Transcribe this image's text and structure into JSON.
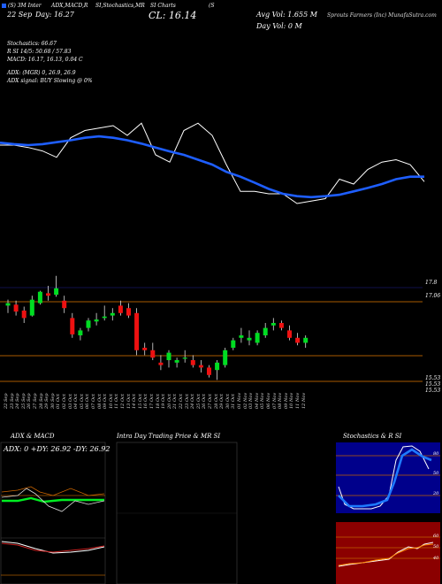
{
  "header": {
    "marker_color": "#1e5eff",
    "top_line": "(S) 3M Inter ADX,MACD,R SI,Stochastics,MR SI Charts (S)",
    "top_line_parts": [
      "(S) 3M Inter",
      "ADX,MACD,R",
      "SI,Stochastics,MR",
      "SI Charts",
      "(S"
    ],
    "date": "22 Sep",
    "day": "Day: 16.27",
    "close": "CL: 16.14",
    "avg_vol": "Avg Vol: 1.655 M",
    "day_vol": "Day Vol: 0 M",
    "company": "Sprouts Farmers (Inc) MunafaSutra.com"
  },
  "indicators": [
    "Stochastics: 66.67",
    "R SI 14/5: 50.68 / 57.83",
    "MACD: 16.17, 16.13, 0.04 C",
    "ADX: (MGR) 0, 26.9, 26.9",
    "ADX signal: BUY Slowing @ 0%"
  ],
  "price_labels": [
    "17.8",
    "17.06",
    "15.53",
    "15.53",
    "15.53"
  ],
  "x_labels": [
    "22 Sep",
    "23 Sep",
    "24 Sep",
    "25 Sep",
    "26 Sep",
    "27 Sep",
    "28 Sep",
    "29 Sep",
    "30 Sep",
    "01 Oct",
    "02 Oct",
    "03 Oct",
    "04 Oct",
    "05 Oct",
    "06 Oct",
    "07 Oct",
    "08 Oct",
    "09 Oct",
    "10 Oct",
    "11 Oct",
    "12 Oct",
    "13 Oct",
    "14 Oct",
    "15 Oct",
    "16 Oct",
    "17 Oct",
    "18 Oct",
    "19 Oct",
    "20 Oct",
    "21 Oct",
    "22 Oct",
    "23 Oct",
    "24 Oct",
    "25 Oct",
    "26 Oct",
    "27 Oct",
    "28 Oct",
    "29 Oct",
    "30 Oct",
    "31 Oct",
    "01 Nov",
    "02 Nov",
    "03 Nov",
    "04 Nov",
    "05 Nov",
    "06 Nov",
    "07 Nov",
    "08 Nov",
    "09 Nov",
    "10 Nov",
    "11 Nov",
    "12 Nov",
    "13 Nov",
    "14 Nov",
    "15 Nov",
    "16 Nov",
    "17 Nov",
    "18 Nov",
    "19 Nov",
    "20 Nov",
    "21 Nov",
    "22 Nov",
    "23 Nov",
    "24 Nov",
    "25 Nov",
    "26 Nov",
    "27 Nov",
    "28 Nov",
    "29 Nov",
    "30 Nov",
    "01 Dec",
    "02 Dec",
    "03 Dec",
    "04 Dec",
    "05 Dec",
    "06 Dec",
    "07 Dec",
    "08 Dec",
    "09 Dec"
  ],
  "panels": {
    "adx": {
      "title": "ADX & MACD",
      "readout": "ADX: 0 +DY: 26.92 -DY: 26.92"
    },
    "mrsi": {
      "title": "Intra Day Trading Price & MR SI"
    },
    "stoch": {
      "title": "Stochastics & R SI",
      "labels": [
        "80",
        "50",
        "20",
        "50",
        "60",
        "40"
      ]
    }
  },
  "colors": {
    "up": "#00dd22",
    "down": "#ee1111",
    "ema": "#1e5eff",
    "price_line": "#ffffff",
    "level_line": "#a85a00",
    "rsi_bg": "#8b0000",
    "stoch_bg": "#00008b"
  },
  "chart_data": [
    {
      "type": "line",
      "title": "Price & Moving Average",
      "series": [
        {
          "values": [
            16.9,
            16.9,
            16.85,
            16.78,
            16.65,
            17.05,
            17.2,
            17.25,
            17.3,
            17.1,
            17.35,
            16.7,
            16.55,
            17.2,
            17.35,
            17.1,
            16.5,
            15.95,
            15.95,
            15.9,
            15.9,
            15.7,
            15.75,
            15.8,
            16.2,
            16.1,
            16.4,
            16.55,
            16.6,
            16.5,
            16.15
          ]
        },
        {
          "values": [
            16.95,
            16.92,
            16.9,
            16.92,
            16.96,
            17.0,
            17.05,
            17.08,
            17.05,
            17.0,
            16.93,
            16.85,
            16.77,
            16.7,
            16.6,
            16.5,
            16.35,
            16.25,
            16.13,
            16.0,
            15.9,
            15.85,
            15.83,
            15.85,
            15.88,
            15.95,
            16.02,
            16.1,
            16.2,
            16.25,
            16.25
          ]
        }
      ]
    },
    {
      "type": "bar",
      "title": "Candlesticks",
      "categories": [
        "22 Sep",
        "29 Sep",
        "06 Oct",
        "13 Oct",
        "20 Oct",
        "27 Oct",
        "03 Nov",
        "10 Nov",
        "17 Nov",
        "24 Nov",
        "01 Dec",
        "09 Dec"
      ],
      "ohlc": [
        [
          17.2,
          17.32,
          17.05,
          17.25
        ],
        [
          17.22,
          17.3,
          17.0,
          17.08
        ],
        [
          17.1,
          17.18,
          16.85,
          16.95
        ],
        [
          17.0,
          17.4,
          16.98,
          17.32
        ],
        [
          17.25,
          17.5,
          17.22,
          17.48
        ],
        [
          17.45,
          17.6,
          17.3,
          17.4
        ],
        [
          17.42,
          17.8,
          17.38,
          17.55
        ],
        [
          17.3,
          17.4,
          17.05,
          17.15
        ],
        [
          16.95,
          17.05,
          16.55,
          16.62
        ],
        [
          16.6,
          16.75,
          16.5,
          16.7
        ],
        [
          16.75,
          16.95,
          16.68,
          16.9
        ],
        [
          16.88,
          17.05,
          16.8,
          16.92
        ],
        [
          16.95,
          17.2,
          16.9,
          16.98
        ],
        [
          17.0,
          17.15,
          16.9,
          17.05
        ],
        [
          17.2,
          17.3,
          17.0,
          17.05
        ],
        [
          17.15,
          17.25,
          16.95,
          17.0
        ],
        [
          17.05,
          17.15,
          16.2,
          16.3
        ],
        [
          16.35,
          16.45,
          16.2,
          16.3
        ],
        [
          16.3,
          16.45,
          16.1,
          16.15
        ],
        [
          16.05,
          16.2,
          15.9,
          16.0
        ],
        [
          16.1,
          16.3,
          15.95,
          16.25
        ],
        [
          16.05,
          16.15,
          15.95,
          16.1
        ],
        [
          16.15,
          16.3,
          16.05,
          16.15
        ],
        [
          16.1,
          16.2,
          15.95,
          16.0
        ],
        [
          16.0,
          16.1,
          15.85,
          15.95
        ],
        [
          15.95,
          16.0,
          15.75,
          15.8
        ],
        [
          15.9,
          16.1,
          15.7,
          16.05
        ],
        [
          16.0,
          16.35,
          15.95,
          16.3
        ],
        [
          16.35,
          16.55,
          16.3,
          16.5
        ],
        [
          16.55,
          16.75,
          16.45,
          16.6
        ],
        [
          16.5,
          16.7,
          16.4,
          16.55
        ],
        [
          16.45,
          16.7,
          16.4,
          16.65
        ],
        [
          16.6,
          16.85,
          16.55,
          16.75
        ],
        [
          16.8,
          16.95,
          16.7,
          16.85
        ],
        [
          16.85,
          16.9,
          16.7,
          16.75
        ],
        [
          16.7,
          16.8,
          16.5,
          16.55
        ],
        [
          16.55,
          16.65,
          16.4,
          16.45
        ],
        [
          16.45,
          16.6,
          16.35,
          16.55
        ]
      ]
    }
  ]
}
